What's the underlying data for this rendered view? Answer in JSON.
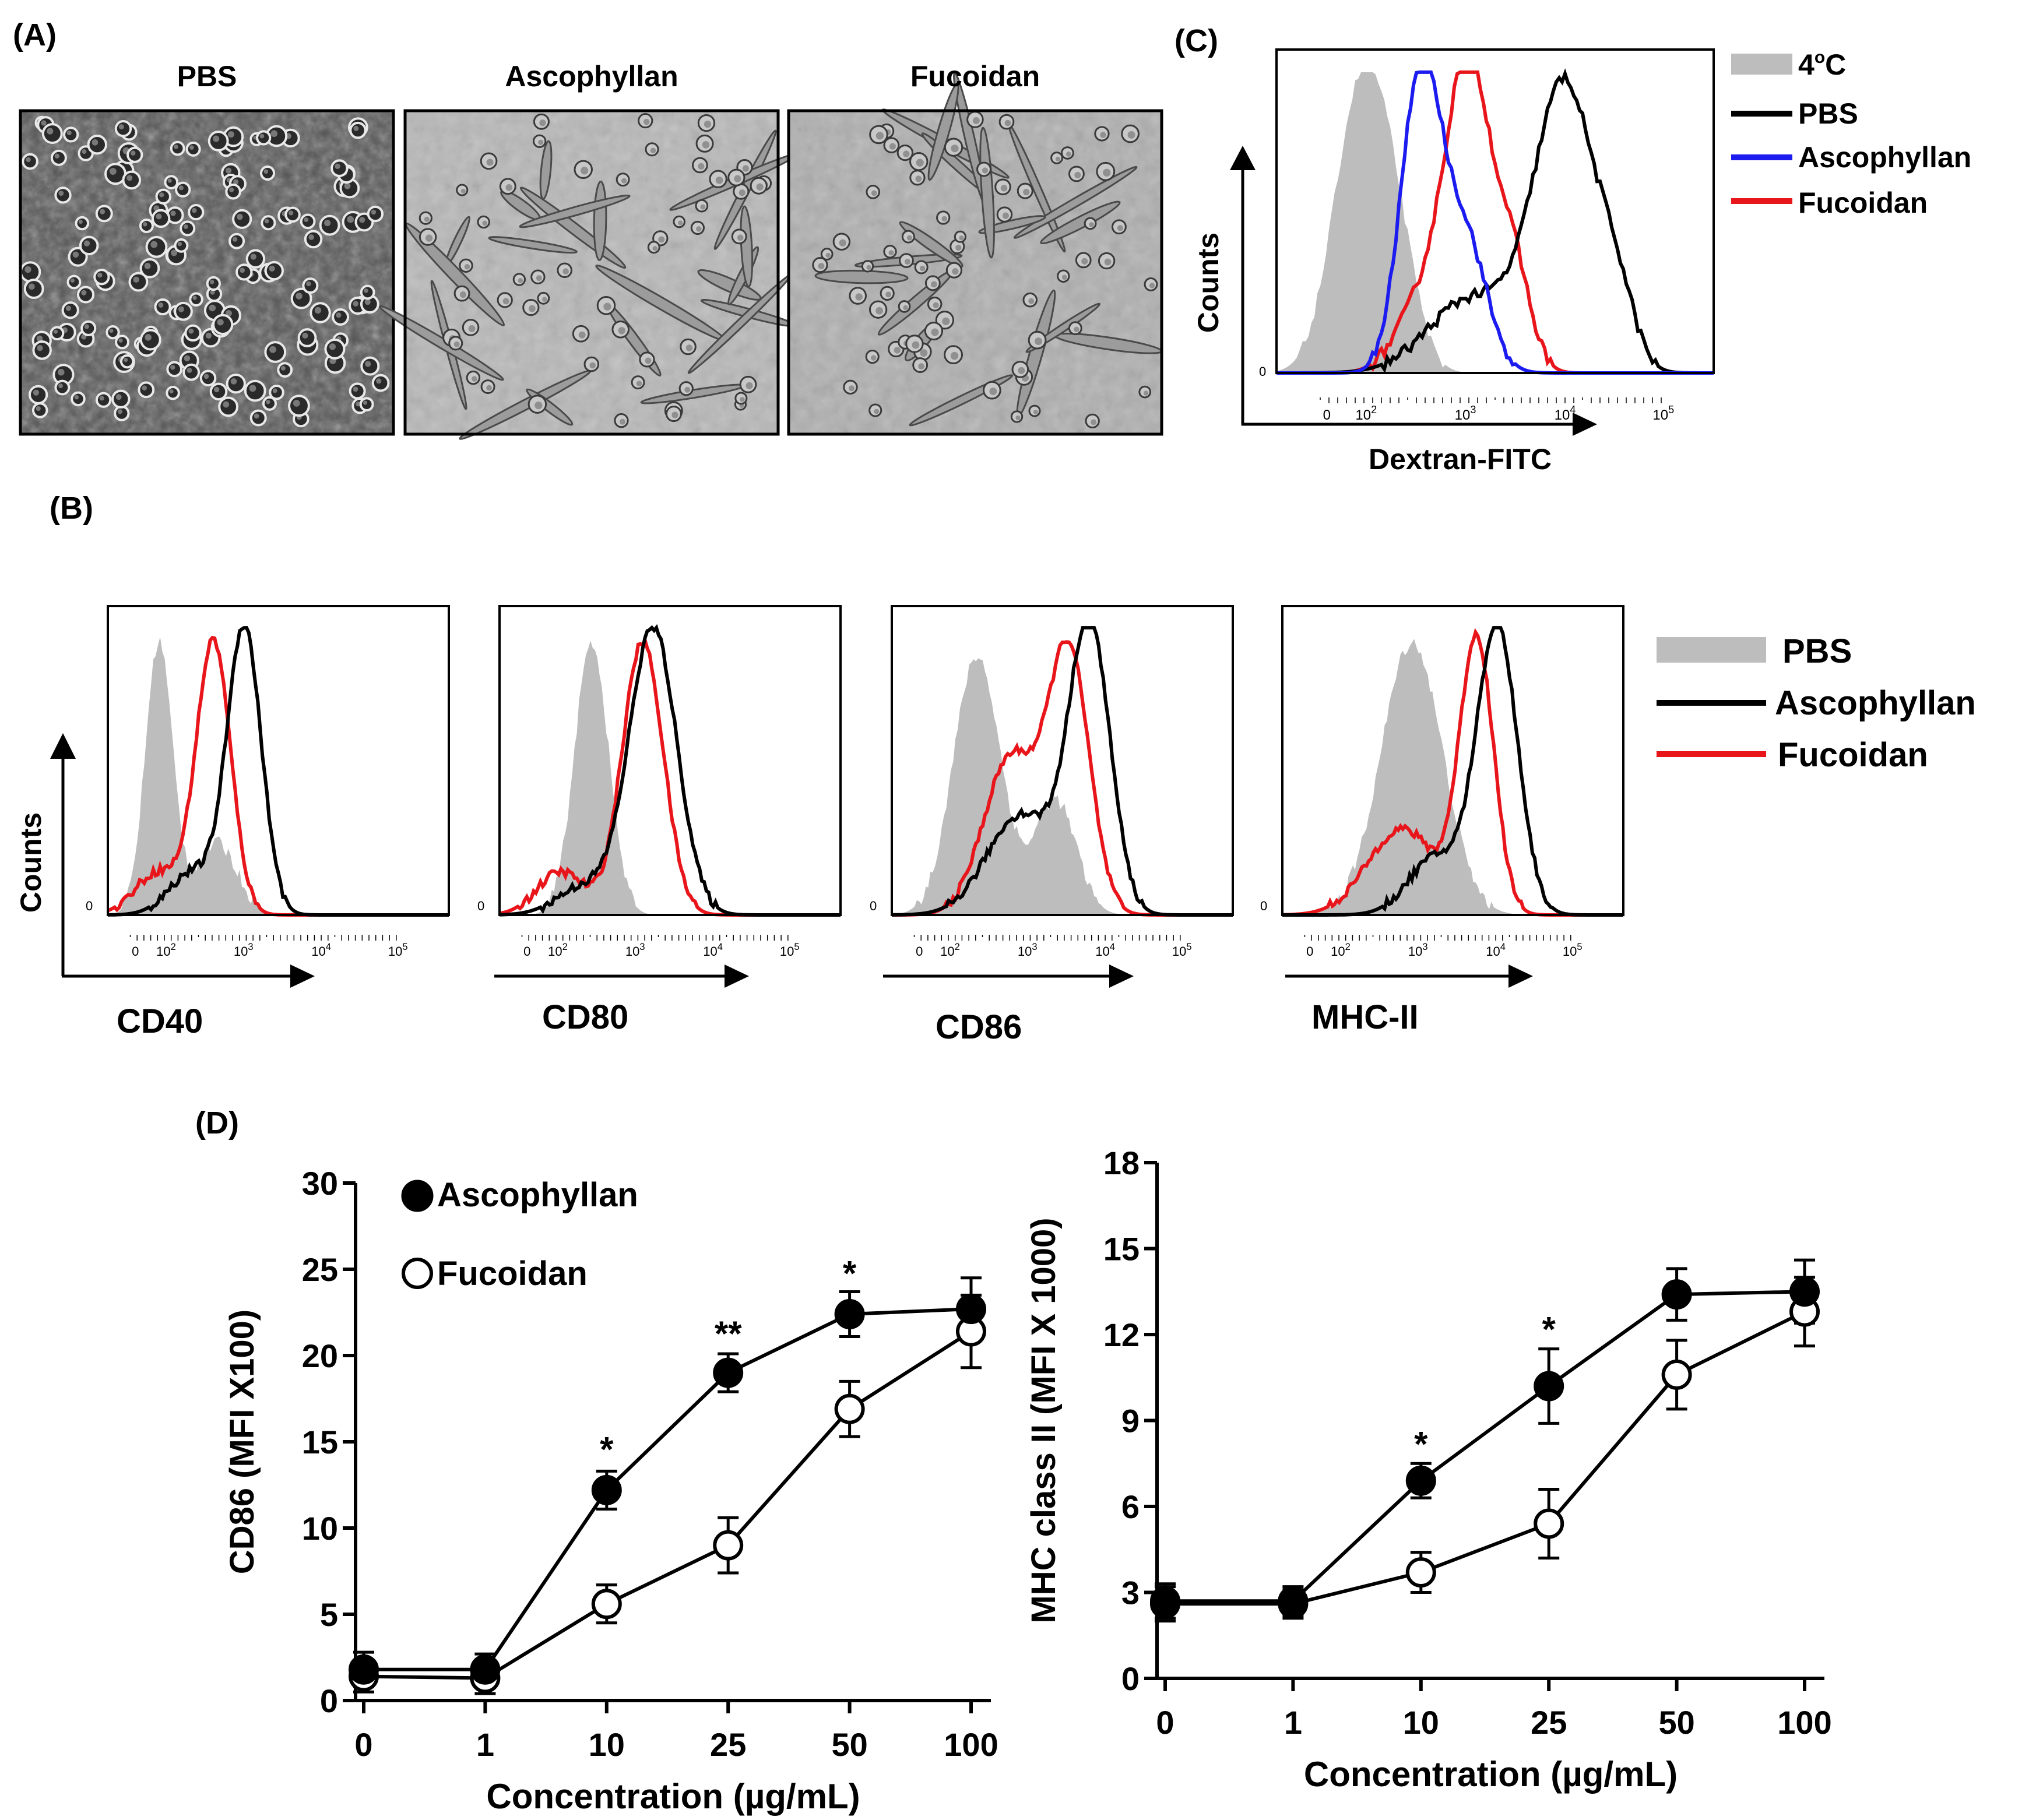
{
  "panels": {
    "A": {
      "label": "(A)",
      "images": [
        {
          "title": "PBS",
          "description": "phase-contrast micrograph, round cells"
        },
        {
          "title": "Ascophyllan",
          "description": "phase-contrast micrograph, elongated dendritic cells"
        },
        {
          "title": "Fucoidan",
          "description": "phase-contrast micrograph, elongated dendritic cells"
        }
      ]
    },
    "B": {
      "label": "(B)",
      "y_label": "Counts",
      "zero_tick": "0",
      "x_ticks": [
        "0",
        "10",
        "10",
        "10",
        "10"
      ],
      "x_tick_exps": [
        "",
        "2",
        "3",
        "4",
        "5"
      ],
      "markers": [
        "CD40",
        "CD80",
        "CD86",
        "MHC-II"
      ],
      "legend": [
        {
          "label": "PBS",
          "color": "#bdbdbd",
          "kind": "fill"
        },
        {
          "label": "Ascophyllan",
          "color": "#000000",
          "kind": "line"
        },
        {
          "label": "Fucoidan",
          "color": "#e8151b",
          "kind": "line"
        }
      ]
    },
    "C": {
      "label": "(C)",
      "y_label": "Counts",
      "x_label": "Dextran-FITC",
      "zero_tick": "0",
      "x_ticks": [
        "0",
        "10",
        "10",
        "10",
        "10"
      ],
      "x_tick_exps": [
        "",
        "2",
        "3",
        "4",
        "5"
      ],
      "legend": [
        {
          "label": "4",
          "sup": "o",
          "suffix": "C",
          "color": "#bdbdbd",
          "kind": "fill"
        },
        {
          "label": "PBS",
          "color": "#000000",
          "kind": "line"
        },
        {
          "label": "Ascophyllan",
          "color": "#1c1cf0",
          "kind": "line"
        },
        {
          "label": "Fucoidan",
          "color": "#e8151b",
          "kind": "line"
        }
      ]
    },
    "D": {
      "label": "(D)",
      "legend": [
        {
          "label": "Ascophyllan",
          "marker": "filled-circle"
        },
        {
          "label": "Fucoidan",
          "marker": "open-circle"
        }
      ]
    }
  },
  "chart_data": [
    {
      "type": "line",
      "title": "",
      "xlabel": "Concentration (µg/mL)",
      "ylabel": "CD86 (MFI X100)",
      "categories": [
        "0",
        "1",
        "10",
        "25",
        "50",
        "100"
      ],
      "ylim": [
        0,
        30
      ],
      "yticks": [
        0,
        5,
        10,
        15,
        20,
        25,
        30
      ],
      "series": [
        {
          "name": "Ascophyllan",
          "marker": "filled",
          "values": [
            1.8,
            1.8,
            12.2,
            19.0,
            22.4,
            22.7
          ],
          "errors": [
            1.0,
            0.9,
            1.1,
            1.1,
            1.3,
            1.8
          ]
        },
        {
          "name": "Fucoidan",
          "marker": "open",
          "values": [
            1.4,
            1.3,
            5.6,
            9.0,
            16.9,
            21.4
          ],
          "errors": [
            0.9,
            0.9,
            1.1,
            1.6,
            1.6,
            2.1
          ]
        }
      ],
      "annotations": [
        {
          "category": "10",
          "text": "*",
          "above_value": 13.6
        },
        {
          "category": "25",
          "text": "**",
          "above_value": 20.3
        },
        {
          "category": "50",
          "text": "*",
          "above_value": 23.8
        }
      ]
    },
    {
      "type": "line",
      "title": "",
      "xlabel": "Concentration (µg/mL)",
      "ylabel": "MHC class II (MFI X 1000)",
      "categories": [
        "0",
        "1",
        "10",
        "25",
        "50",
        "100"
      ],
      "ylim": [
        0,
        18
      ],
      "yticks": [
        0,
        3,
        6,
        9,
        12,
        15,
        18
      ],
      "series": [
        {
          "name": "Ascophyllan",
          "marker": "filled",
          "values": [
            2.7,
            2.7,
            6.9,
            10.2,
            13.4,
            13.5
          ],
          "errors": [
            0.6,
            0.5,
            0.6,
            1.3,
            0.9,
            1.1
          ]
        },
        {
          "name": "Fucoidan",
          "marker": "open",
          "values": [
            2.6,
            2.6,
            3.7,
            5.4,
            10.6,
            12.8
          ],
          "errors": [
            0.6,
            0.5,
            0.7,
            1.2,
            1.2,
            1.2
          ]
        }
      ],
      "annotations": [
        {
          "category": "10",
          "text": "*",
          "above_value": 7.6
        },
        {
          "category": "25",
          "text": "*",
          "above_value": 11.6
        }
      ]
    }
  ]
}
